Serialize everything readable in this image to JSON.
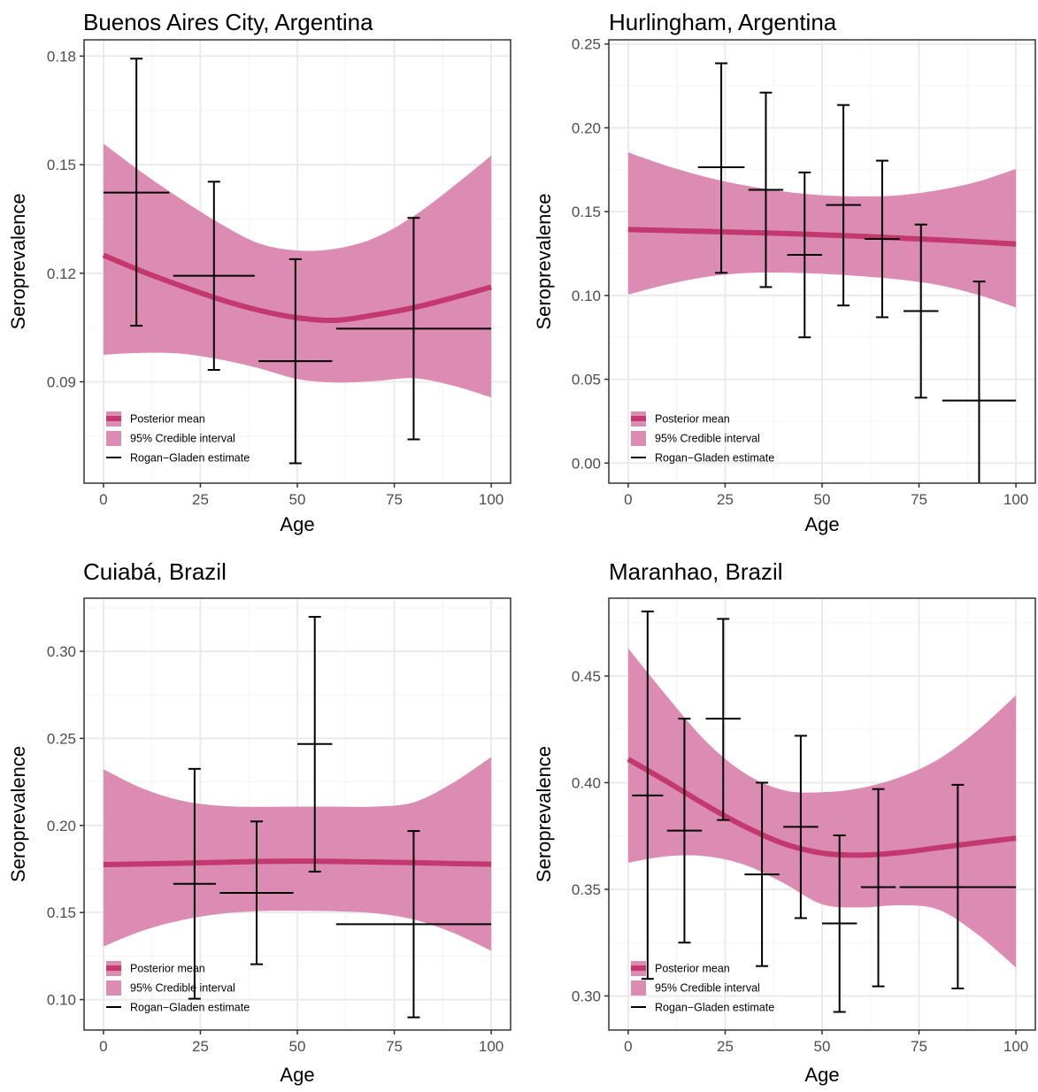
{
  "figure": {
    "colors": {
      "posterior_mean": "#c2386f",
      "credible_interval": "#dc8cb2",
      "estimate": "#000000",
      "grid_major": "#ebebeb",
      "grid_minor": "#f5f5f5",
      "panel_border": "#333333",
      "tick_text": "#4d4d4d"
    },
    "legend": {
      "items": [
        {
          "label": "Posterior mean",
          "kind": "line"
        },
        {
          "label": "95% Credible interval",
          "kind": "fill"
        },
        {
          "label": "Rogan−Gladen estimate",
          "kind": "errorbar"
        }
      ],
      "placement": "bottom-left"
    }
  },
  "chart_data": [
    {
      "type": "line",
      "title": "Buenos Aires City, Argentina",
      "xlabel": "Age",
      "ylabel": "Seroprevalence",
      "xlim": [
        -5,
        105
      ],
      "ylim": [
        0.062,
        0.1845
      ],
      "xticks": [
        0,
        25,
        50,
        75,
        100
      ],
      "xtick_labels": [
        "0",
        "25",
        "50",
        "75",
        "100"
      ],
      "yticks": [
        0.09,
        0.12,
        0.15,
        0.18
      ],
      "ytick_labels": [
        "0.09",
        "0.12",
        "0.15",
        "0.18"
      ],
      "grid": true,
      "posterior_mean": {
        "x": [
          0,
          10,
          20,
          30,
          40,
          50,
          60,
          70,
          80,
          90,
          100
        ],
        "y": [
          0.125,
          0.1205,
          0.1165,
          0.1128,
          0.1098,
          0.1077,
          0.107,
          0.1085,
          0.1105,
          0.1132,
          0.1162
        ]
      },
      "credible_interval": {
        "x": [
          0,
          10,
          20,
          30,
          40,
          50,
          60,
          70,
          80,
          90,
          100
        ],
        "lower": [
          0.0975,
          0.098,
          0.0978,
          0.0962,
          0.0938,
          0.0908,
          0.0898,
          0.0902,
          0.091,
          0.089,
          0.0857
        ],
        "upper": [
          0.1558,
          0.1478,
          0.1405,
          0.1338,
          0.1283,
          0.1263,
          0.1268,
          0.1298,
          0.1358,
          0.1438,
          0.1525
        ]
      },
      "estimates": [
        {
          "xmin": 0,
          "xmax": 17,
          "x": 8.5,
          "y": 0.1423,
          "ymin": 0.1055,
          "ymax": 0.1793
        },
        {
          "xmin": 18,
          "xmax": 39,
          "x": 28.5,
          "y": 0.1193,
          "ymin": 0.0933,
          "ymax": 0.1453
        },
        {
          "xmin": 40,
          "xmax": 59,
          "x": 49.5,
          "y": 0.0957,
          "ymin": 0.0675,
          "ymax": 0.1239
        },
        {
          "xmin": 60,
          "xmax": 100,
          "x": 80,
          "y": 0.1047,
          "ymin": 0.0741,
          "ymax": 0.1353
        }
      ]
    },
    {
      "type": "line",
      "title": "Hurlingham, Argentina",
      "xlabel": "Age",
      "ylabel": "Seroprevalence",
      "xlim": [
        -5,
        105
      ],
      "ylim": [
        -0.012,
        0.2525
      ],
      "xticks": [
        0,
        25,
        50,
        75,
        100
      ],
      "xtick_labels": [
        "0",
        "25",
        "50",
        "75",
        "100"
      ],
      "yticks": [
        0.0,
        0.05,
        0.1,
        0.15,
        0.2,
        0.25
      ],
      "ytick_labels": [
        "0.00",
        "0.05",
        "0.10",
        "0.15",
        "0.20",
        "0.25"
      ],
      "grid": true,
      "posterior_mean": {
        "x": [
          0,
          20,
          40,
          60,
          80,
          100
        ],
        "y": [
          0.1393,
          0.1382,
          0.137,
          0.1353,
          0.1332,
          0.1307
        ]
      },
      "credible_interval": {
        "x": [
          0,
          10,
          20,
          30,
          40,
          50,
          60,
          70,
          80,
          90,
          100
        ],
        "lower": [
          0.1005,
          0.1065,
          0.111,
          0.1133,
          0.1136,
          0.1129,
          0.1115,
          0.1095,
          0.1062,
          0.1005,
          0.0928
        ],
        "upper": [
          0.1853,
          0.1773,
          0.1707,
          0.1657,
          0.162,
          0.1598,
          0.1591,
          0.1598,
          0.1628,
          0.1678,
          0.1755
        ]
      },
      "estimates": [
        {
          "xmin": 18,
          "xmax": 30,
          "x": 24,
          "y": 0.1765,
          "ymin": 0.1135,
          "ymax": 0.2385
        },
        {
          "xmin": 31,
          "xmax": 40,
          "x": 35.5,
          "y": 0.163,
          "ymin": 0.105,
          "ymax": 0.221
        },
        {
          "xmin": 41,
          "xmax": 50,
          "x": 45.5,
          "y": 0.1242,
          "ymin": 0.075,
          "ymax": 0.1734
        },
        {
          "xmin": 51,
          "xmax": 60,
          "x": 55.5,
          "y": 0.154,
          "ymin": 0.094,
          "ymax": 0.2136
        },
        {
          "xmin": 61,
          "xmax": 70,
          "x": 65.5,
          "y": 0.1337,
          "ymin": 0.087,
          "ymax": 0.1804
        },
        {
          "xmin": 71,
          "xmax": 80,
          "x": 75.5,
          "y": 0.0907,
          "ymin": 0.039,
          "ymax": 0.1423
        },
        {
          "xmin": 81,
          "xmax": 100,
          "x": 90.5,
          "y": 0.0373,
          "ymin": -0.035,
          "ymax": 0.1083
        }
      ]
    },
    {
      "type": "line",
      "title": "Cuiabá, Brazil",
      "xlabel": "Age",
      "ylabel": "Seroprevalence",
      "xlim": [
        -5,
        105
      ],
      "ylim": [
        0.0825,
        0.3305
      ],
      "xticks": [
        0,
        25,
        50,
        75,
        100
      ],
      "xtick_labels": [
        "0",
        "25",
        "50",
        "75",
        "100"
      ],
      "yticks": [
        0.1,
        0.15,
        0.2,
        0.25,
        0.3
      ],
      "ytick_labels": [
        "0.10",
        "0.15",
        "0.20",
        "0.25",
        "0.30"
      ],
      "grid": true,
      "posterior_mean": {
        "x": [
          0,
          20,
          40,
          50,
          60,
          80,
          100
        ],
        "y": [
          0.1775,
          0.1783,
          0.1793,
          0.1795,
          0.1793,
          0.1786,
          0.1777
        ]
      },
      "credible_interval": {
        "x": [
          0,
          10,
          20,
          30,
          40,
          50,
          60,
          70,
          80,
          90,
          100
        ],
        "lower": [
          0.1305,
          0.1395,
          0.1455,
          0.1492,
          0.1508,
          0.151,
          0.1507,
          0.1496,
          0.146,
          0.1385,
          0.128
        ],
        "upper": [
          0.2323,
          0.2213,
          0.2143,
          0.2113,
          0.2107,
          0.2108,
          0.2108,
          0.2108,
          0.2133,
          0.2243,
          0.2393
        ]
      },
      "estimates": [
        {
          "xmin": 18,
          "xmax": 29,
          "x": 23.5,
          "y": 0.1665,
          "ymin": 0.1005,
          "ymax": 0.2325
        },
        {
          "xmin": 30,
          "xmax": 49,
          "x": 39.5,
          "y": 0.1613,
          "ymin": 0.1203,
          "ymax": 0.2023
        },
        {
          "xmin": 50,
          "xmax": 59,
          "x": 54.5,
          "y": 0.2468,
          "ymin": 0.1735,
          "ymax": 0.3198
        },
        {
          "xmin": 60,
          "xmax": 100,
          "x": 80,
          "y": 0.1433,
          "ymin": 0.0898,
          "ymax": 0.1968
        }
      ]
    },
    {
      "type": "line",
      "title": "Maranhao, Brazil",
      "xlabel": "Age",
      "ylabel": "Seroprevalence",
      "xlim": [
        -5,
        105
      ],
      "ylim": [
        0.284,
        0.4865
      ],
      "xticks": [
        0,
        25,
        50,
        75,
        100
      ],
      "xtick_labels": [
        "0",
        "25",
        "50",
        "75",
        "100"
      ],
      "yticks": [
        0.3,
        0.35,
        0.4,
        0.45
      ],
      "ytick_labels": [
        "0.30",
        "0.35",
        "0.40",
        "0.45"
      ],
      "grid": true,
      "posterior_mean": {
        "x": [
          0,
          10,
          20,
          30,
          40,
          50,
          60,
          70,
          80,
          90,
          100
        ],
        "y": [
          0.411,
          0.4005,
          0.3895,
          0.3795,
          0.3715,
          0.367,
          0.366,
          0.3672,
          0.3695,
          0.3718,
          0.374
        ]
      },
      "credible_interval": {
        "x": [
          0,
          10,
          20,
          30,
          40,
          50,
          60,
          70,
          80,
          90,
          100
        ],
        "lower": [
          0.3625,
          0.3655,
          0.3655,
          0.3615,
          0.353,
          0.343,
          0.3415,
          0.3425,
          0.3405,
          0.329,
          0.3133
        ],
        "upper": [
          0.463,
          0.4405,
          0.4195,
          0.4045,
          0.3965,
          0.3955,
          0.3975,
          0.4025,
          0.411,
          0.4243,
          0.441
        ]
      },
      "estimates": [
        {
          "xmin": 1,
          "xmax": 9,
          "x": 5,
          "y": 0.394,
          "ymin": 0.308,
          "ymax": 0.4803
        },
        {
          "xmin": 10,
          "xmax": 19,
          "x": 14.5,
          "y": 0.3775,
          "ymin": 0.325,
          "ymax": 0.43
        },
        {
          "xmin": 20,
          "xmax": 29,
          "x": 24.5,
          "y": 0.43,
          "ymin": 0.3825,
          "ymax": 0.4768
        },
        {
          "xmin": 30,
          "xmax": 39,
          "x": 34.5,
          "y": 0.357,
          "ymin": 0.314,
          "ymax": 0.4
        },
        {
          "xmin": 40,
          "xmax": 49,
          "x": 44.5,
          "y": 0.3793,
          "ymin": 0.3365,
          "ymax": 0.422
        },
        {
          "xmin": 50,
          "xmax": 59,
          "x": 54.5,
          "y": 0.334,
          "ymin": 0.2925,
          "ymax": 0.3753
        },
        {
          "xmin": 60,
          "xmax": 69,
          "x": 64.5,
          "y": 0.351,
          "ymin": 0.3045,
          "ymax": 0.397
        },
        {
          "xmin": 70,
          "xmax": 100,
          "x": 85,
          "y": 0.351,
          "ymin": 0.3035,
          "ymax": 0.399
        }
      ]
    }
  ]
}
